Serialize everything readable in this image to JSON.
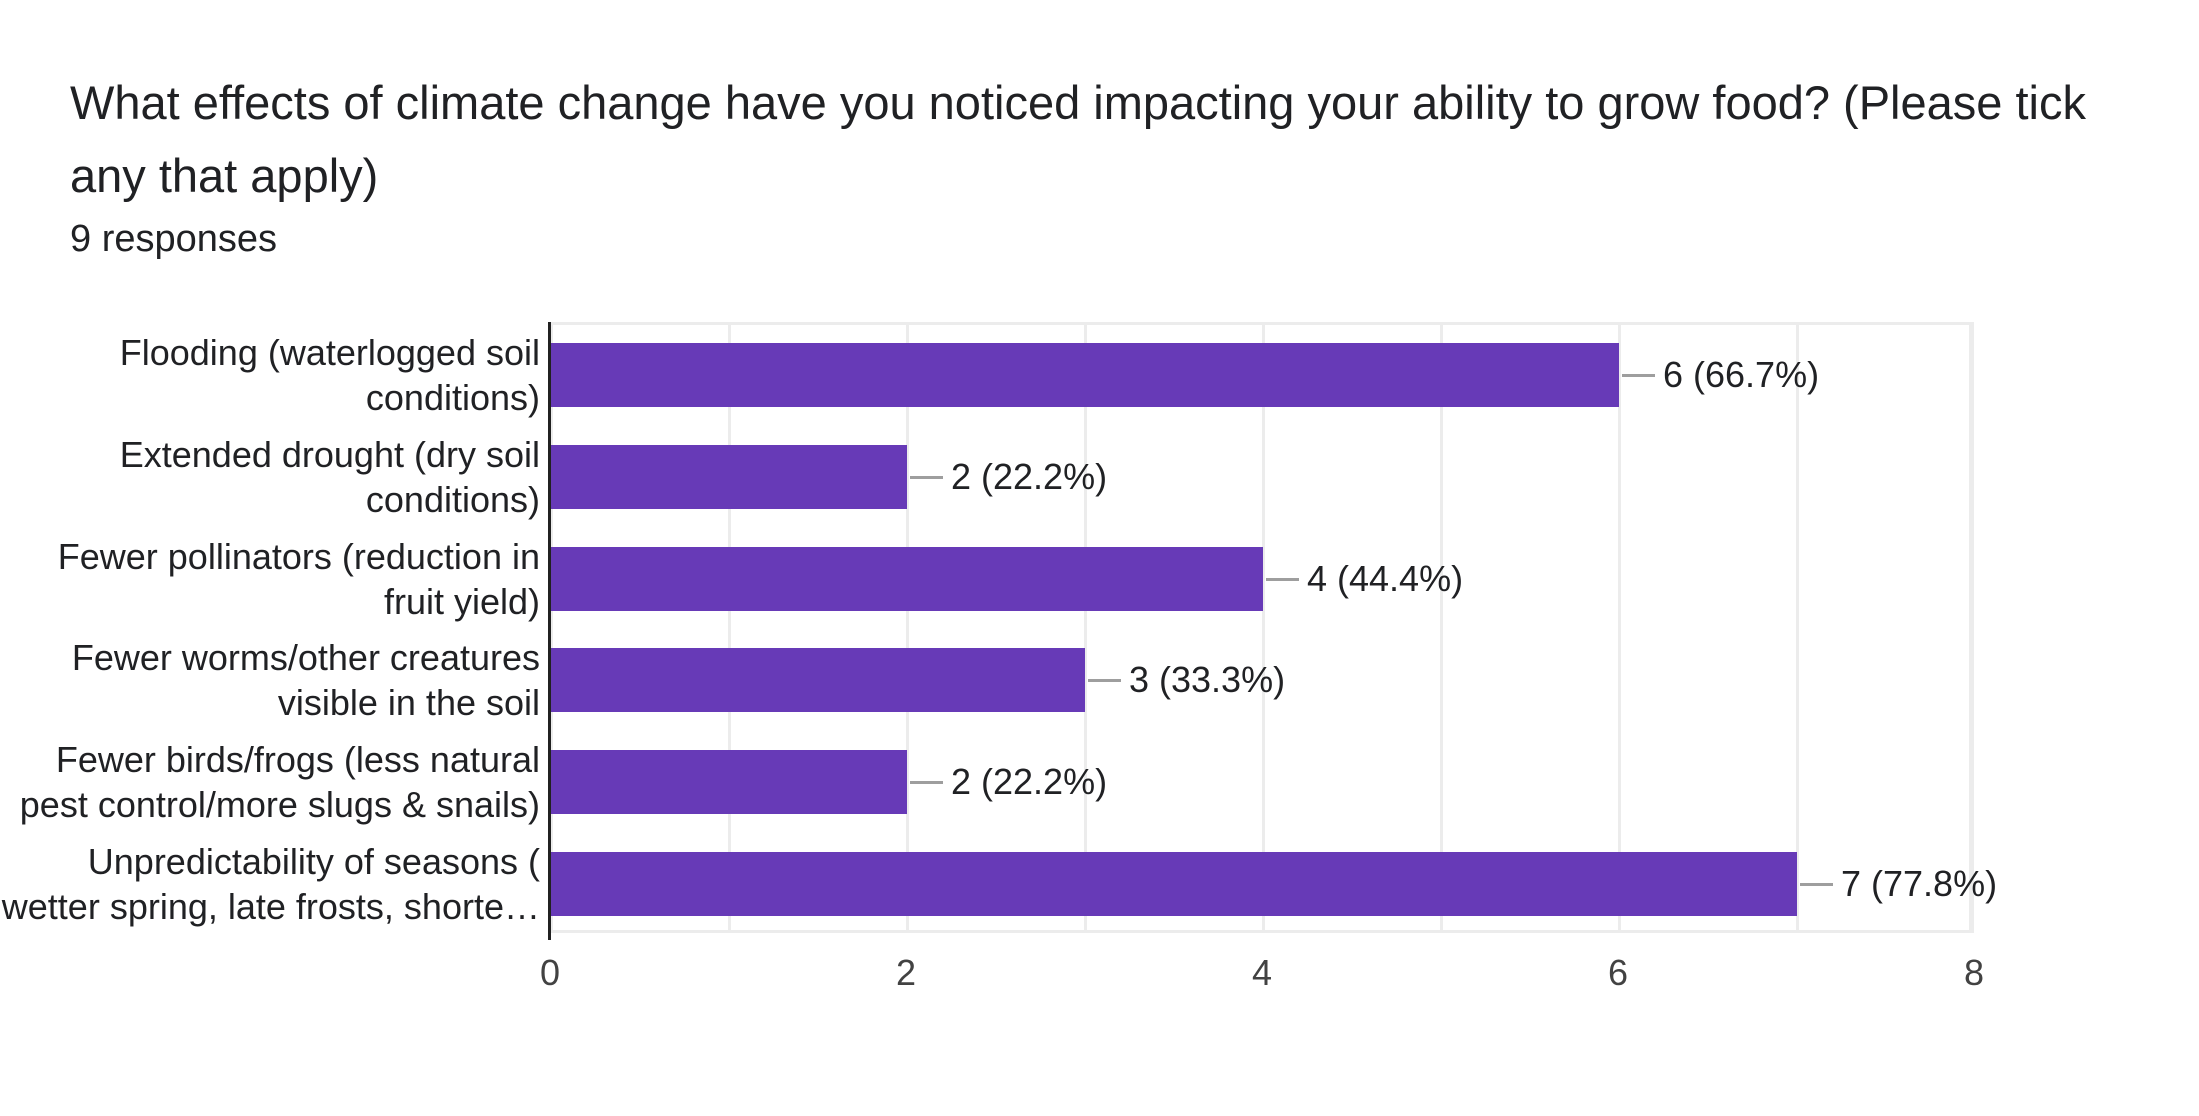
{
  "header": {
    "title": "What effects of climate change have you noticed impacting your ability to grow food? (Please tick any that apply)",
    "title_lines": [
      "What effects of climate change have you noticed impacting your ability to grow food? (Please tick",
      "any that apply)"
    ],
    "responses_label": "9 responses"
  },
  "chart_data": {
    "type": "bar",
    "orientation": "horizontal",
    "title": "What effects of climate change have you noticed impacting your ability to grow food? (Please tick any that apply)",
    "subtitle": "9 responses",
    "total_responses": 9,
    "categories": [
      "Flooding (waterlogged soil conditions)",
      "Extended drought (dry soil conditions)",
      "Fewer pollinators (reduction in fruit yield)",
      "Fewer worms/other creatures visible in the soil",
      "Fewer birds/frogs (less natural pest control/more slugs & snails)",
      "Unpredictability of seasons ( wetter spring, late frosts, shorte…"
    ],
    "category_lines": [
      [
        "Flooding (waterlogged soil",
        "conditions)"
      ],
      [
        "Extended drought (dry soil",
        "conditions)"
      ],
      [
        "Fewer pollinators (reduction in",
        "fruit yield)"
      ],
      [
        "Fewer worms/other creatures",
        "visible in the soil"
      ],
      [
        "Fewer birds/frogs (less natural",
        "pest control/more slugs & snails)"
      ],
      [
        "Unpredictability of seasons (",
        "wetter spring, late frosts, shorte…"
      ]
    ],
    "values": [
      6,
      2,
      4,
      3,
      2,
      7
    ],
    "percentages": [
      66.7,
      22.2,
      44.4,
      33.3,
      22.2,
      77.8
    ],
    "value_labels": [
      "6 (66.7%)",
      "2 (22.2%)",
      "4 (44.4%)",
      "3 (33.3%)",
      "2 (22.2%)",
      "7 (77.8%)"
    ],
    "xlim": [
      0,
      8
    ],
    "x_ticks": [
      0,
      2,
      4,
      6,
      8
    ],
    "x_tick_labels": [
      "0",
      "2",
      "4",
      "6",
      "8"
    ],
    "gridlines": "vertical, every 1 unit",
    "legend": "none",
    "bar_color": "#673ab7"
  },
  "colors": {
    "background": "#ffffff",
    "bar": "#673ab7",
    "axis_line": "#212121",
    "gridline": "#ececec",
    "connector": "#9e9e9e",
    "text": "#202124",
    "tick_text": "#424242"
  }
}
